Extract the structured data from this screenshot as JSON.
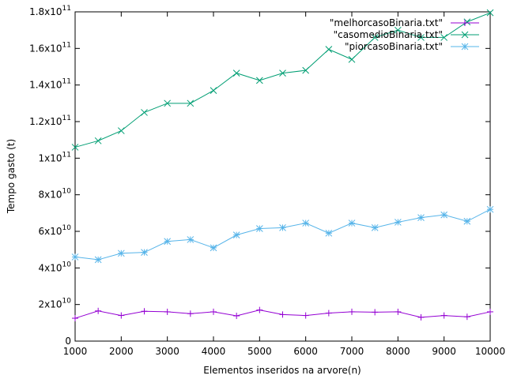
{
  "chart_data": {
    "type": "line",
    "xlabel": "Elementos inseridos na arvore(n)",
    "ylabel": "Tempo gasto (t)",
    "xlim": [
      1000,
      10000
    ],
    "ylim": [
      0,
      180000000000
    ],
    "grid": false,
    "legend_position": "top-right",
    "x_ticks": [
      1000,
      2000,
      3000,
      4000,
      5000,
      6000,
      7000,
      8000,
      9000,
      10000
    ],
    "x_tick_labels": [
      "1000",
      "2000",
      "3000",
      "4000",
      "5000",
      "6000",
      "7000",
      "8000",
      "9000",
      "10000"
    ],
    "y_ticks": [
      {
        "value": 0,
        "mant": "0",
        "exp": ""
      },
      {
        "value": 20000000000,
        "mant": "2x10",
        "exp": "10"
      },
      {
        "value": 40000000000,
        "mant": "4x10",
        "exp": "10"
      },
      {
        "value": 60000000000,
        "mant": "6x10",
        "exp": "10"
      },
      {
        "value": 80000000000,
        "mant": "8x10",
        "exp": "10"
      },
      {
        "value": 100000000000,
        "mant": "1x10",
        "exp": "11"
      },
      {
        "value": 120000000000,
        "mant": "1.2x10",
        "exp": "11"
      },
      {
        "value": 140000000000,
        "mant": "1.4x10",
        "exp": "11"
      },
      {
        "value": 160000000000,
        "mant": "1.6x10",
        "exp": "11"
      },
      {
        "value": 180000000000,
        "mant": "1.8x10",
        "exp": "11"
      }
    ],
    "x": [
      1000,
      1500,
      2000,
      2500,
      3000,
      3500,
      4000,
      4500,
      5000,
      5500,
      6000,
      6500,
      7000,
      7500,
      8000,
      8500,
      9000,
      9500,
      10000
    ],
    "series": [
      {
        "name": "\"melhorcasoBinaria.txt\"",
        "color": "#9400d3",
        "marker": "plus",
        "values": [
          12500000000,
          16500000000,
          14000000000,
          16300000000,
          16000000000,
          15000000000,
          16000000000,
          13800000000,
          17000000000,
          14500000000,
          14000000000,
          15300000000,
          16000000000,
          15800000000,
          16000000000,
          13000000000,
          14000000000,
          13300000000,
          16000000000
        ]
      },
      {
        "name": "\"casomedioBinaria.txt\"",
        "color": "#009e73",
        "marker": "cross",
        "values": [
          106000000000,
          109500000000,
          115000000000,
          125000000000,
          130000000000,
          130000000000,
          137000000000,
          146500000000,
          142500000000,
          146500000000,
          148000000000,
          159500000000,
          154000000000,
          166000000000,
          170000000000,
          166000000000,
          166000000000,
          174500000000,
          179500000000
        ]
      },
      {
        "name": "\"piorcasoBinaria.txt\"",
        "color": "#56b4e9",
        "marker": "star",
        "values": [
          46000000000,
          44500000000,
          48000000000,
          48500000000,
          54500000000,
          55500000000,
          51000000000,
          58000000000,
          61500000000,
          62000000000,
          64500000000,
          59000000000,
          64500000000,
          62000000000,
          65000000000,
          67500000000,
          69000000000,
          65500000000,
          72000000000
        ]
      }
    ]
  }
}
